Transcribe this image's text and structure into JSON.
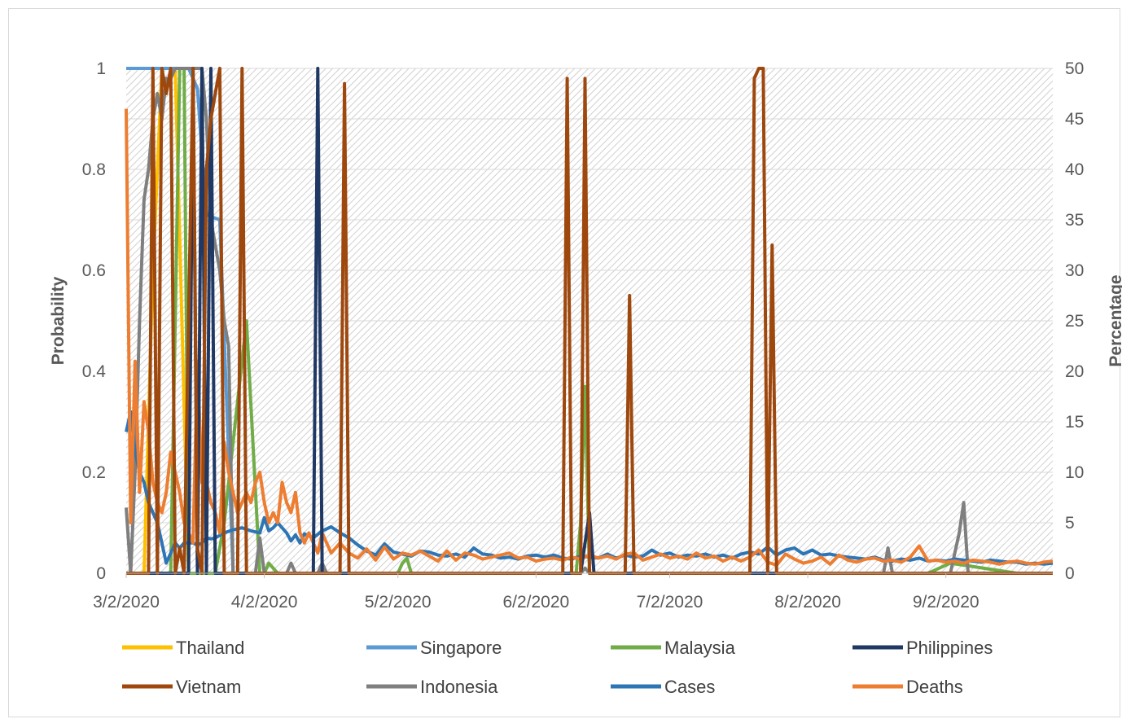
{
  "chart_data": {
    "type": "line",
    "title": "",
    "ylabel": "Probability",
    "y2label": "Percentage",
    "xlabel": "",
    "ylim": [
      0,
      1
    ],
    "y2lim": [
      0,
      50
    ],
    "grid": true,
    "legend_position": "bottom",
    "xticks": [
      "3/2/2020",
      "4/2/2020",
      "5/2/2020",
      "6/2/2020",
      "7/2/2020",
      "8/2/2020",
      "9/2/2020"
    ],
    "yticks": [
      "0",
      "0.2",
      "0.4",
      "0.6",
      "0.8",
      "1"
    ],
    "y2ticks": [
      "0",
      "5",
      "10",
      "15",
      "20",
      "25",
      "30",
      "35",
      "40",
      "45",
      "50"
    ],
    "series": [
      {
        "name": "Thailand",
        "color": "#FFC000",
        "axis": "left",
        "x": [
          0,
          4,
          6,
          8,
          11,
          14,
          17,
          20,
          24
        ],
        "y": [
          0,
          0,
          0.6,
          1,
          1,
          0,
          0,
          0,
          0
        ]
      },
      {
        "name": "Singapore",
        "color": "#5B9BD5",
        "axis": "left",
        "x": [
          0,
          4,
          6,
          8,
          11,
          14,
          16,
          18,
          21,
          24,
          27
        ],
        "y": [
          1,
          1,
          1,
          1,
          1,
          1,
          0.96,
          0.71,
          0.7,
          0,
          0
        ]
      },
      {
        "name": "Malaysia",
        "color": "#70AD47",
        "axis": "left",
        "x": [
          0,
          10,
          12,
          13,
          14,
          20,
          22,
          27,
          30,
          31,
          32,
          34,
          36,
          60,
          61,
          62,
          63,
          64,
          66,
          100,
          101,
          102,
          103,
          104,
          180,
          185,
          200
        ],
        "y": [
          0,
          0,
          1,
          1,
          0,
          0,
          0.1,
          0.5,
          0,
          0,
          0.02,
          0,
          0,
          0,
          0,
          0.02,
          0.03,
          0,
          0,
          0,
          0,
          0.1,
          0.37,
          0,
          0,
          0.02,
          0
        ]
      },
      {
        "name": "Philippines",
        "color": "#1F3864",
        "axis": "left",
        "x": [
          0,
          10,
          12,
          13,
          14,
          15,
          16,
          17,
          18,
          19,
          20,
          40,
          42,
          43,
          44,
          45,
          100,
          102,
          104,
          105,
          106,
          208
        ],
        "y": [
          0,
          0,
          0,
          0,
          0,
          1,
          0,
          1,
          0,
          1,
          0,
          0,
          0,
          1,
          0,
          0,
          0,
          0,
          0.12,
          0,
          0,
          0
        ]
      },
      {
        "name": "Vietnam",
        "color": "#9E480E",
        "axis": "left",
        "x": [
          0,
          5,
          6,
          7,
          8,
          9,
          10,
          11,
          12,
          13,
          14,
          15,
          16,
          17,
          18,
          19,
          20,
          21,
          22,
          23,
          24,
          25,
          26,
          27,
          28,
          29,
          30,
          31,
          48,
          49,
          50,
          51,
          52,
          98,
          99,
          100,
          101,
          102,
          103,
          104,
          105,
          106,
          112,
          113,
          114,
          140,
          141,
          142,
          143,
          144,
          145,
          146,
          147,
          148,
          208
        ],
        "y": [
          0,
          0,
          1,
          0,
          1,
          0.95,
          1,
          0,
          0.05,
          0,
          0.5,
          1,
          0.05,
          0,
          0.8,
          0.9,
          0.95,
          1,
          0,
          0,
          0,
          0,
          1,
          0,
          0,
          0,
          0,
          0,
          0,
          0.97,
          0,
          0,
          0,
          0,
          0.98,
          0,
          0,
          0,
          0.98,
          0,
          0,
          0,
          0,
          0.55,
          0,
          0,
          0.98,
          1,
          1,
          0,
          0.65,
          0,
          0,
          0,
          0
        ]
      },
      {
        "name": "Indonesia",
        "color": "#7F7F7F",
        "axis": "left",
        "x": [
          0,
          1,
          2,
          3,
          4,
          5,
          6,
          7,
          8,
          9,
          10,
          11,
          12,
          13,
          14,
          15,
          16,
          17,
          18,
          19,
          20,
          21,
          22,
          23,
          24,
          25,
          26,
          27,
          28,
          29,
          30,
          31,
          32,
          33,
          36,
          37,
          38,
          40,
          43,
          44,
          45,
          60,
          90,
          100,
          101,
          102,
          103,
          104,
          105,
          160,
          170,
          171,
          172,
          180,
          185,
          187,
          188,
          189,
          208
        ],
        "y": [
          0.13,
          0,
          0.2,
          0.5,
          0.74,
          0.8,
          0.9,
          0.95,
          0.9,
          0.98,
          0.98,
          1,
          1,
          1,
          1,
          1,
          1,
          1,
          0.9,
          0.7,
          0.65,
          0.6,
          0.5,
          0.45,
          0,
          0,
          0,
          0,
          0,
          0,
          0.07,
          0,
          0,
          0,
          0,
          0.02,
          0,
          0,
          0,
          0.02,
          0,
          0,
          0,
          0,
          0,
          0,
          0.01,
          0,
          0,
          0,
          0,
          0.05,
          0,
          0,
          0,
          0.08,
          0.14,
          0,
          0
        ]
      },
      {
        "name": "Cases",
        "color": "#2E75B6",
        "axis": "right",
        "x": [
          0,
          1,
          2,
          3,
          4,
          5,
          6,
          7,
          8,
          9,
          10,
          11,
          12,
          13,
          14,
          15,
          16,
          17,
          18,
          19,
          20,
          22,
          24,
          26,
          28,
          30,
          31,
          32,
          33,
          34,
          35,
          36,
          37,
          38,
          39,
          40,
          42,
          44,
          46,
          48,
          50,
          52,
          54,
          56,
          58,
          60,
          62,
          64,
          66,
          68,
          70,
          72,
          74,
          76,
          78,
          80,
          82,
          84,
          86,
          88,
          90,
          92,
          94,
          96,
          98,
          100,
          102,
          104,
          106,
          108,
          110,
          112,
          114,
          116,
          118,
          120,
          122,
          124,
          126,
          128,
          130,
          132,
          134,
          136,
          138,
          140,
          142,
          144,
          146,
          148,
          150,
          152,
          154,
          156,
          158,
          160,
          162,
          164,
          166,
          168,
          170,
          172,
          174,
          176,
          178,
          180,
          182,
          184,
          186,
          188,
          190,
          192,
          194,
          196,
          198,
          200,
          202,
          204,
          206,
          208
        ],
        "y": [
          14,
          16,
          12,
          10,
          9,
          7,
          6,
          5,
          3,
          1,
          2,
          3,
          2.5,
          3,
          3,
          3,
          2.8,
          3,
          3.5,
          3.4,
          3.5,
          4,
          4.3,
          4.5,
          4.2,
          4,
          5.5,
          4.2,
          4.5,
          5,
          4.5,
          4,
          3.2,
          3.8,
          3,
          3.9,
          3.5,
          4.2,
          4.6,
          4,
          3.5,
          2.8,
          2.2,
          1.8,
          2.9,
          2.1,
          1.9,
          1.7,
          2.2,
          2.1,
          1.8,
          1.7,
          1.9,
          1.6,
          2.5,
          1.9,
          1.8,
          1.5,
          1.6,
          1.4,
          1.7,
          1.8,
          1.6,
          1.8,
          1.5,
          1.4,
          1.7,
          1.6,
          1.5,
          1.9,
          1.5,
          1.8,
          1.6,
          1.7,
          2.3,
          1.8,
          2.0,
          1.6,
          1.8,
          1.7,
          1.9,
          1.6,
          1.8,
          1.5,
          1.9,
          2.1,
          1.9,
          2.6,
          1.8,
          2.3,
          2.5,
          1.9,
          2.3,
          1.8,
          1.9,
          1.7,
          1.6,
          1.5,
          1.4,
          1.6,
          1.3,
          1.2,
          1.4,
          1.3,
          1.5,
          1.2,
          1.3,
          1.2,
          1.4,
          1.3,
          1.2,
          1.1,
          1.3,
          1.2,
          1.1,
          1.1,
          0.9,
          1.0,
          0.9,
          1.0
        ]
      },
      {
        "name": "Deaths",
        "color": "#ED7D31",
        "axis": "right",
        "x": [
          0,
          1,
          2,
          3,
          4,
          5,
          6,
          7,
          8,
          9,
          10,
          11,
          12,
          13,
          14,
          15,
          16,
          17,
          18,
          19,
          20,
          21,
          22,
          23,
          24,
          25,
          26,
          27,
          28,
          29,
          30,
          31,
          32,
          33,
          34,
          35,
          36,
          37,
          38,
          39,
          40,
          41,
          42,
          43,
          44,
          45,
          46,
          48,
          50,
          52,
          54,
          56,
          58,
          60,
          62,
          64,
          66,
          68,
          70,
          72,
          74,
          76,
          78,
          80,
          82,
          84,
          86,
          88,
          90,
          92,
          94,
          96,
          98,
          100,
          102,
          104,
          106,
          108,
          110,
          112,
          114,
          116,
          118,
          120,
          122,
          124,
          126,
          128,
          130,
          132,
          134,
          136,
          138,
          140,
          142,
          144,
          146,
          148,
          150,
          152,
          154,
          156,
          158,
          160,
          162,
          164,
          166,
          168,
          170,
          172,
          174,
          176,
          178,
          180,
          182,
          184,
          186,
          188,
          190,
          192,
          194,
          196,
          198,
          200,
          202,
          204,
          206,
          208
        ],
        "y": [
          46,
          5,
          21,
          8,
          17,
          14,
          9,
          7,
          6,
          8,
          12,
          10,
          8,
          5,
          4,
          3,
          21,
          9,
          9,
          7,
          6,
          4,
          13,
          10,
          8,
          6,
          7,
          8,
          7,
          9,
          10,
          7,
          5,
          6,
          5,
          9,
          7,
          6,
          8,
          4,
          3,
          4,
          3,
          2,
          4,
          3,
          2,
          3,
          2,
          1.5,
          2.4,
          1.3,
          2.6,
          1.4,
          2.0,
          1.8,
          2.2,
          1.7,
          1.2,
          2.2,
          1.3,
          2.0,
          1.8,
          1.4,
          1.6,
          1.8,
          2.0,
          1.5,
          1.6,
          1.2,
          1.4,
          1.5,
          1.3,
          1.6,
          1.4,
          1.8,
          1.5,
          1.7,
          1.4,
          1.9,
          2.0,
          1.3,
          1.6,
          1.9,
          1.5,
          1.7,
          1.4,
          2.0,
          1.5,
          1.7,
          1.2,
          1.6,
          1.2,
          1.6,
          2.3,
          1.1,
          0.8,
          1.9,
          1.4,
          1.0,
          1.2,
          1.6,
          0.9,
          1.8,
          1.3,
          1.1,
          1.4,
          1.5,
          1.2,
          1.3,
          1.1,
          1.6,
          2.7,
          1.2,
          1.3,
          1.1,
          1.2,
          1.0,
          1.3,
          1.2,
          1.1,
          0.9,
          1.1,
          1.2,
          1.0,
          0.9,
          1.1,
          1.2
        ]
      }
    ]
  }
}
